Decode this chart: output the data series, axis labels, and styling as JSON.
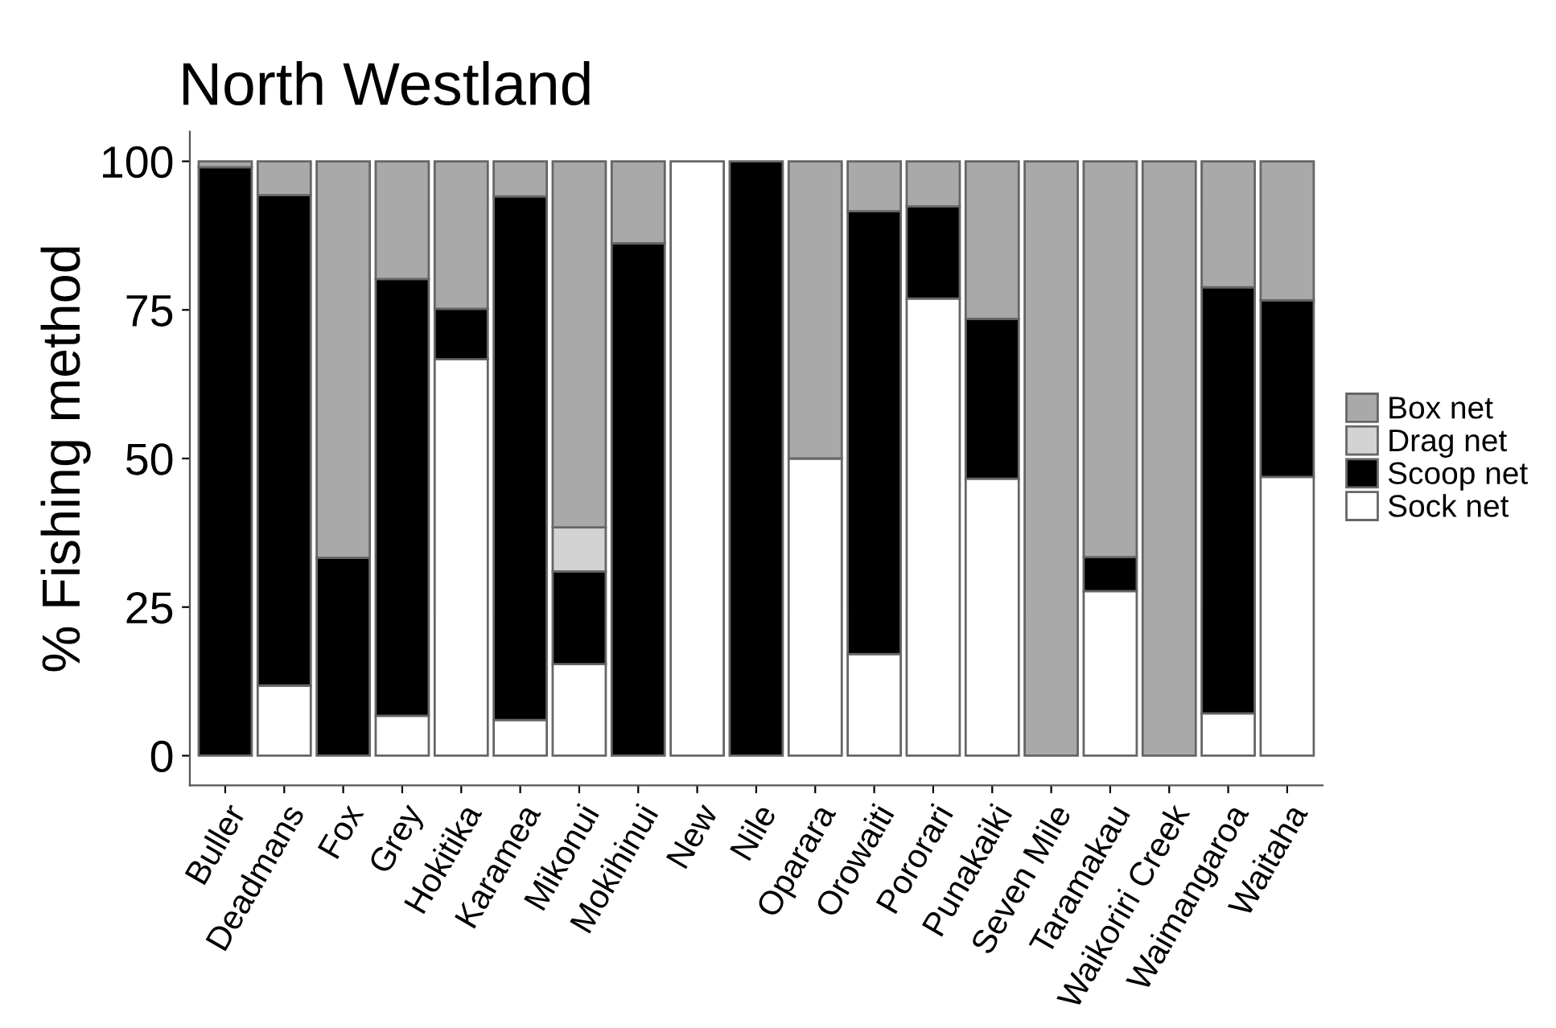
{
  "chart_data": {
    "type": "bar",
    "title": "North Westland",
    "ylabel": "% Fishing method",
    "stacked": true,
    "categories": [
      "Buller",
      "Deadmans",
      "Fox",
      "Grey",
      "Hokitika",
      "Karamea",
      "Mikonui",
      "Mokihinui",
      "New",
      "Nile",
      "Oparara",
      "Orowaiti",
      "Pororari",
      "Punakaiki",
      "Seven Mile",
      "Taramakau",
      "Waikoriri Creek",
      "Waimangaroa",
      "Waitaha"
    ],
    "series": [
      {
        "name": "Sock net",
        "color": "#ffffff",
        "values": [
          0,
          11.8,
          0,
          6.7,
          66.7,
          6,
          15.4,
          0,
          100,
          0,
          50,
          17.1,
          76.9,
          46.6,
          0,
          27.7,
          0,
          7.1,
          46.9
        ]
      },
      {
        "name": "Scoop net",
        "color": "#000000",
        "values": [
          99,
          82.5,
          33.3,
          73.5,
          8.5,
          88.1,
          15.6,
          86.2,
          0,
          100,
          0,
          74.5,
          15.5,
          26.9,
          0,
          5.7,
          0,
          71.7,
          29.7
        ]
      },
      {
        "name": "Drag net",
        "color": "#d3d3d3",
        "values": [
          0,
          0,
          0,
          0,
          0,
          0,
          7.4,
          0,
          0,
          0,
          0,
          0,
          0,
          0,
          0,
          0,
          0,
          0,
          0
        ]
      },
      {
        "name": "Box net",
        "color": "#a9a9a9",
        "values": [
          1,
          5.7,
          66.7,
          19.8,
          24.8,
          5.9,
          61.6,
          13.8,
          0,
          0,
          50,
          8.4,
          7.6,
          26.5,
          100,
          66.6,
          100,
          21.2,
          23.4
        ]
      }
    ],
    "ylim": [
      -5,
      105
    ],
    "yticks": [
      0,
      25,
      50,
      75,
      100
    ],
    "grid": false,
    "legend": "right"
  }
}
